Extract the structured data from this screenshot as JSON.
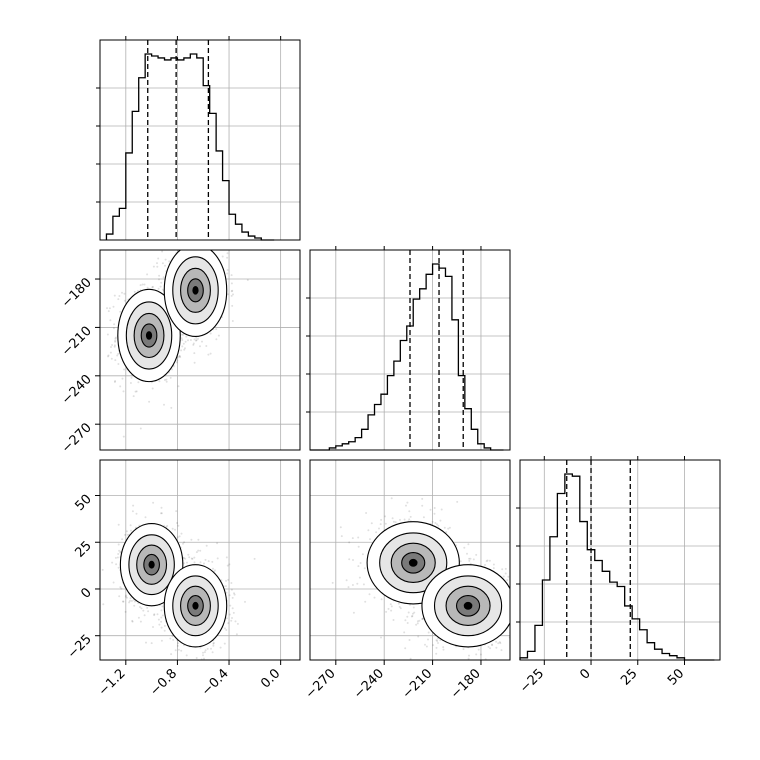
{
  "chart_data": {
    "type": "corner",
    "parameters": [
      {
        "range": [
          -1.4,
          0.15
        ],
        "ticks": [
          -1.2,
          -0.8,
          -0.4,
          0.0
        ],
        "tick_labels": [
          "−1.2",
          "−0.8",
          "−0.4",
          "0.0"
        ]
      },
      {
        "range": [
          -286,
          -162
        ],
        "ticks": [
          -270,
          -240,
          -210,
          -180
        ],
        "tick_labels": [
          "−270",
          "−240",
          "−210",
          "−180"
        ]
      },
      {
        "range": [
          -38,
          69
        ],
        "ticks": [
          -25,
          0,
          25,
          50
        ],
        "tick_labels": [
          "−25",
          "0",
          "25",
          "50"
        ]
      }
    ],
    "grid": true,
    "histograms": [
      {
        "bin_edges": [
          -1.35,
          -1.3,
          -1.25,
          -1.2,
          -1.15,
          -1.1,
          -1.05,
          -1.0,
          -0.95,
          -0.9,
          -0.85,
          -0.8,
          -0.75,
          -0.7,
          -0.65,
          -0.6,
          -0.55,
          -0.5,
          -0.45,
          -0.4,
          -0.35,
          -0.3,
          -0.25,
          -0.2,
          -0.15,
          -0.1,
          -0.05
        ],
        "counts": [
          0.03,
          0.12,
          0.16,
          0.44,
          0.65,
          0.82,
          0.94,
          0.93,
          0.92,
          0.91,
          0.92,
          0.91,
          0.92,
          0.94,
          0.92,
          0.78,
          0.64,
          0.45,
          0.3,
          0.13,
          0.08,
          0.04,
          0.02,
          0.01,
          0.0,
          0.0
        ],
        "quantiles": [
          -1.03,
          -0.81,
          -0.56
        ]
      },
      {
        "bin_edges": [
          -286,
          -282,
          -278,
          -274,
          -270,
          -266,
          -262,
          -258,
          -254,
          -250,
          -246,
          -242,
          -238,
          -234,
          -230,
          -226,
          -222,
          -218,
          -214,
          -210,
          -206,
          -202,
          -198,
          -194,
          -190,
          -186,
          -182,
          -178,
          -174,
          -170,
          -166
        ],
        "counts": [
          0.0,
          0.0,
          0.0,
          0.01,
          0.02,
          0.03,
          0.04,
          0.06,
          0.1,
          0.17,
          0.22,
          0.27,
          0.36,
          0.43,
          0.53,
          0.6,
          0.73,
          0.78,
          0.85,
          0.9,
          0.88,
          0.84,
          0.63,
          0.36,
          0.2,
          0.1,
          0.03,
          0.01,
          0.0,
          0.0
        ],
        "quantiles": [
          -224,
          -206,
          -191
        ]
      },
      {
        "bin_edges": [
          -38,
          -34,
          -30,
          -26,
          -22,
          -18,
          -14,
          -10,
          -6,
          -2,
          2,
          6,
          10,
          14,
          18,
          22,
          26,
          30,
          34,
          38,
          42,
          46,
          50,
          54,
          58,
          62,
          66
        ],
        "counts": [
          0.01,
          0.04,
          0.16,
          0.37,
          0.57,
          0.77,
          0.86,
          0.85,
          0.64,
          0.51,
          0.46,
          0.41,
          0.36,
          0.34,
          0.25,
          0.19,
          0.14,
          0.08,
          0.05,
          0.03,
          0.02,
          0.01,
          0.0,
          0.0,
          0.0,
          0.0
        ],
        "quantiles": [
          -13,
          0,
          21
        ]
      }
    ],
    "joint_2d": [
      {
        "x_param": 0,
        "y_param": 1,
        "modes": [
          {
            "x": -1.02,
            "y": -215,
            "weight": 0.55
          },
          {
            "x": -0.66,
            "y": -187,
            "weight": 0.45
          }
        ]
      },
      {
        "x_param": 0,
        "y_param": 2,
        "modes": [
          {
            "x": -1.0,
            "y": 13,
            "weight": 0.5
          },
          {
            "x": -0.66,
            "y": -9,
            "weight": 0.5
          }
        ]
      },
      {
        "x_param": 1,
        "y_param": 2,
        "modes": [
          {
            "x": -222,
            "y": 14,
            "weight": 0.4
          },
          {
            "x": -188,
            "y": -9,
            "weight": 0.6
          }
        ]
      }
    ]
  }
}
